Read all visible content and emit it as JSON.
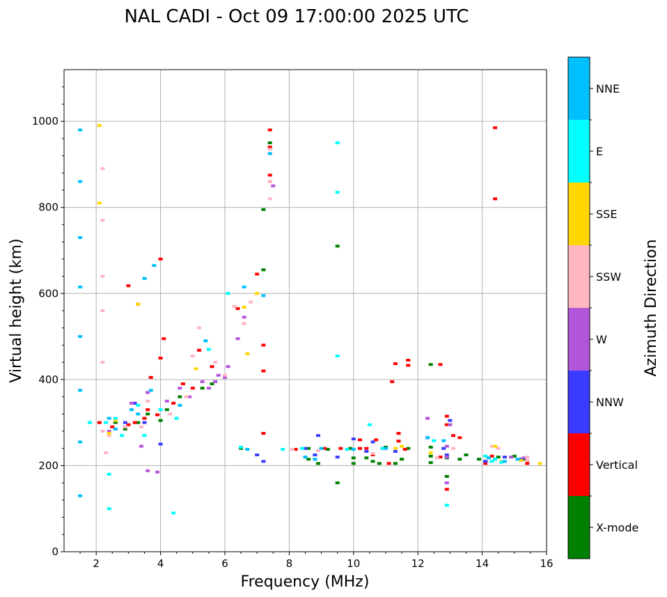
{
  "chart_data": {
    "type": "scatter",
    "title": "NAL CADI - Oct 09 17:00:00 2025 UTC",
    "xlabel": "Frequency (MHz)",
    "ylabel": "Virtual height (km)",
    "xlim": [
      1,
      16
    ],
    "ylim": [
      0,
      1120
    ],
    "xticks": [
      2,
      4,
      6,
      8,
      10,
      12,
      14,
      16
    ],
    "yticks": [
      0,
      200,
      400,
      600,
      800,
      1000
    ],
    "grid": true,
    "colorbar": {
      "label": "Azimuth Direction",
      "categories": [
        {
          "name": "X-mode",
          "color": "#008000"
        },
        {
          "name": "Vertical",
          "color": "#ff0000"
        },
        {
          "name": "NNW",
          "color": "#3b3bff"
        },
        {
          "name": "W",
          "color": "#b355d8"
        },
        {
          "name": "SSW",
          "color": "#ffb6c1"
        },
        {
          "name": "SSE",
          "color": "#ffd700"
        },
        {
          "name": "E",
          "color": "#00ffff"
        },
        {
          "name": "NNE",
          "color": "#00bfff"
        }
      ]
    },
    "series": [
      {
        "name": "X-mode",
        "points": [
          [
            2.6,
            300
          ],
          [
            2.9,
            285
          ],
          [
            3.3,
            300
          ],
          [
            3.6,
            320
          ],
          [
            4.0,
            305
          ],
          [
            4.2,
            330
          ],
          [
            4.6,
            360
          ],
          [
            5.3,
            380
          ],
          [
            5.6,
            390
          ],
          [
            6.5,
            240
          ],
          [
            7.2,
            655
          ],
          [
            7.2,
            795
          ],
          [
            7.4,
            950
          ],
          [
            7.4,
            940
          ],
          [
            8.6,
            240
          ],
          [
            8.6,
            215
          ],
          [
            8.9,
            205
          ],
          [
            9.2,
            238
          ],
          [
            9.5,
            710
          ],
          [
            9.5,
            160
          ],
          [
            9.9,
            240
          ],
          [
            10.0,
            205
          ],
          [
            10.0,
            218
          ],
          [
            10.4,
            218
          ],
          [
            10.6,
            210
          ],
          [
            10.8,
            205
          ],
          [
            11.0,
            243
          ],
          [
            11.3,
            205
          ],
          [
            11.5,
            215
          ],
          [
            11.7,
            240
          ],
          [
            12.4,
            435
          ],
          [
            12.4,
            243
          ],
          [
            12.4,
            222
          ],
          [
            12.4,
            207
          ],
          [
            12.9,
            175
          ],
          [
            12.9,
            218
          ],
          [
            13.3,
            215
          ],
          [
            13.5,
            225
          ],
          [
            13.9,
            215
          ],
          [
            14.1,
            210
          ],
          [
            14.4,
            215
          ],
          [
            14.5,
            220
          ],
          [
            15.0,
            222
          ],
          [
            15.3,
            215
          ]
        ]
      },
      {
        "name": "Vertical",
        "points": [
          [
            2.1,
            300
          ],
          [
            2.5,
            290
          ],
          [
            3.0,
            295
          ],
          [
            3.0,
            618
          ],
          [
            3.2,
            300
          ],
          [
            3.3,
            575
          ],
          [
            3.5,
            310
          ],
          [
            3.6,
            330
          ],
          [
            3.7,
            405
          ],
          [
            3.9,
            318
          ],
          [
            4.0,
            450
          ],
          [
            4.0,
            680
          ],
          [
            4.1,
            495
          ],
          [
            4.4,
            345
          ],
          [
            4.7,
            390
          ],
          [
            5.0,
            380
          ],
          [
            5.2,
            468
          ],
          [
            5.6,
            430
          ],
          [
            6.4,
            565
          ],
          [
            7.0,
            645
          ],
          [
            7.2,
            480
          ],
          [
            7.2,
            420
          ],
          [
            7.4,
            980
          ],
          [
            7.4,
            940
          ],
          [
            7.4,
            875
          ],
          [
            7.4,
            860
          ],
          [
            7.2,
            275
          ],
          [
            8.2,
            238
          ],
          [
            9.1,
            240
          ],
          [
            9.6,
            240
          ],
          [
            10.2,
            260
          ],
          [
            10.2,
            240
          ],
          [
            10.4,
            240
          ],
          [
            10.6,
            225
          ],
          [
            10.7,
            260
          ],
          [
            10.9,
            240
          ],
          [
            11.1,
            205
          ],
          [
            11.2,
            395
          ],
          [
            11.3,
            437
          ],
          [
            11.4,
            257
          ],
          [
            11.4,
            275
          ],
          [
            11.6,
            238
          ],
          [
            11.7,
            445
          ],
          [
            11.7,
            433
          ],
          [
            12.7,
            435
          ],
          [
            12.7,
            220
          ],
          [
            12.9,
            315
          ],
          [
            12.9,
            295
          ],
          [
            12.9,
            145
          ],
          [
            13.1,
            270
          ],
          [
            13.3,
            265
          ],
          [
            14.1,
            205
          ],
          [
            14.3,
            222
          ],
          [
            14.4,
            985
          ],
          [
            14.4,
            820
          ],
          [
            15.4,
            205
          ]
        ]
      },
      {
        "name": "NNW",
        "points": [
          [
            2.9,
            300
          ],
          [
            3.2,
            345
          ],
          [
            3.5,
            300
          ],
          [
            4.0,
            250
          ],
          [
            7.0,
            225
          ],
          [
            7.2,
            210
          ],
          [
            8.5,
            240
          ],
          [
            8.8,
            225
          ],
          [
            8.9,
            270
          ],
          [
            9.5,
            220
          ],
          [
            10.0,
            262
          ],
          [
            10.4,
            233
          ],
          [
            10.6,
            255
          ],
          [
            11.3,
            233
          ],
          [
            12.3,
            265
          ],
          [
            12.8,
            240
          ],
          [
            12.9,
            225
          ],
          [
            13.0,
            305
          ],
          [
            14.1,
            210
          ],
          [
            14.7,
            220
          ],
          [
            15.2,
            215
          ]
        ]
      },
      {
        "name": "W",
        "points": [
          [
            2.4,
            280
          ],
          [
            3.1,
            345
          ],
          [
            3.4,
            245
          ],
          [
            3.6,
            370
          ],
          [
            3.6,
            188
          ],
          [
            3.9,
            185
          ],
          [
            4.2,
            350
          ],
          [
            4.6,
            380
          ],
          [
            4.9,
            360
          ],
          [
            5.3,
            395
          ],
          [
            5.5,
            380
          ],
          [
            5.7,
            395
          ],
          [
            5.8,
            410
          ],
          [
            6.0,
            405
          ],
          [
            6.1,
            430
          ],
          [
            6.4,
            495
          ],
          [
            6.6,
            545
          ],
          [
            7.5,
            850
          ],
          [
            12.3,
            310
          ],
          [
            12.9,
            220
          ],
          [
            12.9,
            245
          ],
          [
            13.0,
            295
          ],
          [
            12.9,
            160
          ],
          [
            14.9,
            220
          ],
          [
            15.3,
            218
          ]
        ]
      },
      {
        "name": "SSW",
        "points": [
          [
            2.2,
            280
          ],
          [
            2.2,
            440
          ],
          [
            2.2,
            560
          ],
          [
            2.2,
            640
          ],
          [
            2.2,
            770
          ],
          [
            2.2,
            890
          ],
          [
            2.3,
            230
          ],
          [
            2.4,
            270
          ],
          [
            2.9,
            290
          ],
          [
            3.4,
            290
          ],
          [
            3.6,
            350
          ],
          [
            4.3,
            320
          ],
          [
            4.8,
            360
          ],
          [
            5.0,
            455
          ],
          [
            5.2,
            520
          ],
          [
            5.7,
            440
          ],
          [
            6.0,
            410
          ],
          [
            6.3,
            570
          ],
          [
            6.6,
            530
          ],
          [
            6.8,
            580
          ],
          [
            7.0,
            600
          ],
          [
            7.4,
            860
          ],
          [
            7.4,
            820
          ],
          [
            7.4,
            935
          ],
          [
            8.1,
            238
          ],
          [
            8.9,
            235
          ],
          [
            10.6,
            228
          ],
          [
            12.6,
            218
          ],
          [
            13.1,
            240
          ],
          [
            14.3,
            245
          ],
          [
            14.5,
            240
          ],
          [
            15.4,
            220
          ],
          [
            15.4,
            212
          ]
        ]
      },
      {
        "name": "SSE",
        "points": [
          [
            2.1,
            990
          ],
          [
            2.1,
            810
          ],
          [
            2.4,
            275
          ],
          [
            2.6,
            305
          ],
          [
            3.3,
            575
          ],
          [
            5.1,
            425
          ],
          [
            6.6,
            568
          ],
          [
            6.7,
            460
          ],
          [
            7.0,
            600
          ],
          [
            11.3,
            240
          ],
          [
            11.5,
            245
          ],
          [
            12.4,
            230
          ],
          [
            14.4,
            245
          ],
          [
            14.6,
            210
          ],
          [
            15.2,
            212
          ],
          [
            15.8,
            205
          ]
        ]
      },
      {
        "name": "E",
        "points": [
          [
            1.8,
            300
          ],
          [
            2.3,
            300
          ],
          [
            2.4,
            100
          ],
          [
            2.4,
            180
          ],
          [
            2.6,
            310
          ],
          [
            2.8,
            270
          ],
          [
            3.3,
            340
          ],
          [
            3.5,
            270
          ],
          [
            4.0,
            330
          ],
          [
            4.4,
            90
          ],
          [
            4.5,
            310
          ],
          [
            5.5,
            470
          ],
          [
            6.1,
            600
          ],
          [
            6.5,
            243
          ],
          [
            7.8,
            238
          ],
          [
            8.4,
            240
          ],
          [
            9.5,
            950
          ],
          [
            9.5,
            835
          ],
          [
            9.5,
            455
          ],
          [
            9.8,
            238
          ],
          [
            10.5,
            295
          ],
          [
            10.9,
            240
          ],
          [
            12.5,
            258
          ],
          [
            12.9,
            108
          ],
          [
            14.1,
            222
          ],
          [
            14.3,
            210
          ],
          [
            14.4,
            215
          ],
          [
            14.6,
            208
          ]
        ]
      },
      {
        "name": "NNE",
        "points": [
          [
            1.5,
            980
          ],
          [
            1.5,
            860
          ],
          [
            1.5,
            730
          ],
          [
            1.5,
            615
          ],
          [
            1.5,
            500
          ],
          [
            1.5,
            375
          ],
          [
            1.5,
            255
          ],
          [
            1.5,
            130
          ],
          [
            2.4,
            310
          ],
          [
            2.6,
            285
          ],
          [
            3.1,
            330
          ],
          [
            3.3,
            320
          ],
          [
            3.5,
            635
          ],
          [
            3.7,
            375
          ],
          [
            3.8,
            665
          ],
          [
            4.6,
            340
          ],
          [
            5.4,
            490
          ],
          [
            6.6,
            615
          ],
          [
            6.7,
            238
          ],
          [
            7.2,
            595
          ],
          [
            7.4,
            925
          ],
          [
            8.5,
            220
          ],
          [
            8.8,
            215
          ],
          [
            9.0,
            240
          ],
          [
            10.0,
            238
          ],
          [
            11.0,
            240
          ],
          [
            12.3,
            265
          ],
          [
            12.8,
            258
          ],
          [
            14.2,
            218
          ],
          [
            14.7,
            210
          ],
          [
            15.1,
            215
          ]
        ]
      }
    ]
  }
}
